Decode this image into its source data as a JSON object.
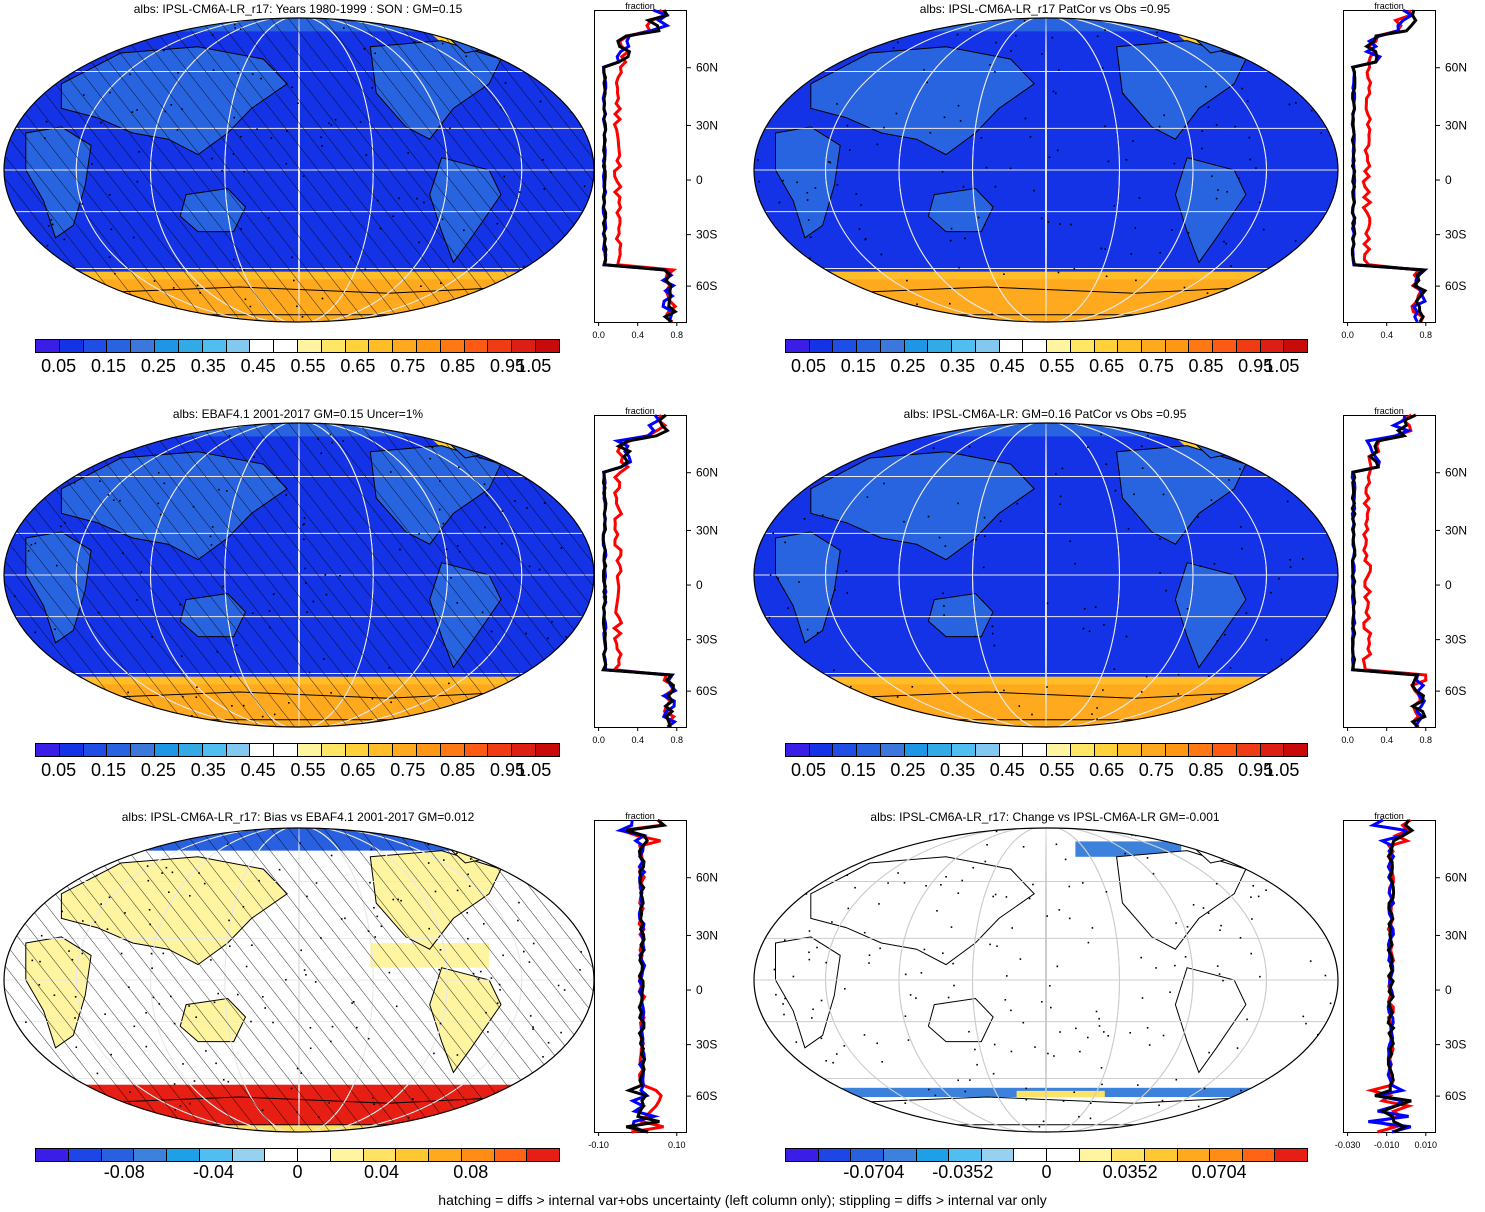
{
  "panels": [
    {
      "title": "albs: IPSL-CM6A-LR_r17: Years 1980-1999 : SON : GM=0.15",
      "kind": "abs",
      "hatch": true,
      "profile": {
        "top_label": "fraction",
        "xticks": [
          "0.0",
          "0.4",
          "0.8"
        ],
        "lat_labels": [
          "60N",
          "30N",
          "0",
          "30S",
          "60S"
        ]
      },
      "colorbar": {
        "labels": [
          "0.05",
          "0.15",
          "0.25",
          "0.35",
          "0.45",
          "0.55",
          "0.65",
          "0.75",
          "0.85",
          "0.95",
          "1.05"
        ]
      }
    },
    {
      "title": "albs: IPSL-CM6A-LR_r17 PatCor vs Obs =0.95",
      "kind": "abs",
      "hatch": false,
      "profile": {
        "top_label": "fraction",
        "xticks": [
          "0.0",
          "0.4",
          "0.8"
        ],
        "lat_labels": [
          "60N",
          "30N",
          "0",
          "30S",
          "60S"
        ]
      },
      "colorbar": {
        "labels": [
          "0.05",
          "0.15",
          "0.25",
          "0.35",
          "0.45",
          "0.55",
          "0.65",
          "0.75",
          "0.85",
          "0.95",
          "1.05"
        ]
      }
    },
    {
      "title": "albs: EBAF4.1 2001-2017 GM=0.15 Uncer=1%",
      "kind": "abs",
      "hatch": true,
      "profile": {
        "top_label": "fraction",
        "xticks": [
          "0.0",
          "0.4",
          "0.8"
        ],
        "lat_labels": [
          "60N",
          "30N",
          "0",
          "30S",
          "60S"
        ]
      },
      "colorbar": {
        "labels": [
          "0.05",
          "0.15",
          "0.25",
          "0.35",
          "0.45",
          "0.55",
          "0.65",
          "0.75",
          "0.85",
          "0.95",
          "1.05"
        ]
      }
    },
    {
      "title": "albs: IPSL-CM6A-LR: GM=0.16 PatCor vs Obs =0.95",
      "kind": "abs",
      "hatch": false,
      "profile": {
        "top_label": "fraction",
        "xticks": [
          "0.0",
          "0.4",
          "0.8"
        ],
        "lat_labels": [
          "60N",
          "30N",
          "0",
          "30S",
          "60S"
        ]
      },
      "colorbar": {
        "labels": [
          "0.05",
          "0.15",
          "0.25",
          "0.35",
          "0.45",
          "0.55",
          "0.65",
          "0.75",
          "0.85",
          "0.95",
          "1.05"
        ]
      }
    },
    {
      "title": "albs: IPSL-CM6A-LR_r17: Bias vs EBAF4.1 2001-2017  GM=0.012",
      "kind": "diff",
      "hatch": true,
      "profile": {
        "top_label": "fraction",
        "xticks": [
          "-0.10",
          "0.10"
        ],
        "lat_labels": [
          "60N",
          "30N",
          "0",
          "30S",
          "60S"
        ]
      },
      "colorbar": {
        "labels": [
          "-0.08",
          "-0.04",
          "0",
          "0.04",
          "0.08"
        ]
      }
    },
    {
      "title": "albs: IPSL-CM6A-LR_r17: Change vs IPSL-CM6A-LR GM=-0.001",
      "kind": "change",
      "hatch": false,
      "profile": {
        "top_label": "fraction",
        "xticks": [
          "-0.030",
          "-0.010",
          "0.010"
        ],
        "lat_labels": [
          "60N",
          "30N",
          "0",
          "30S",
          "60S"
        ]
      },
      "colorbar": {
        "labels": [
          "-0.0704",
          "-0.0352",
          "0",
          "0.0352",
          "0.0704"
        ]
      }
    }
  ],
  "colors": {
    "abs_scale": [
      "#3a1ee8",
      "#1432e6",
      "#1e4ee6",
      "#2864e0",
      "#3c78dc",
      "#1e96e6",
      "#32aae6",
      "#50bef0",
      "#82c8f0",
      "#ffffff",
      "#ffffff",
      "#fff5a0",
      "#ffe664",
      "#ffd23c",
      "#ffbe28",
      "#ffaa1e",
      "#ff9614",
      "#ff7814",
      "#ff5a14",
      "#f03c14",
      "#dc1e14",
      "#c80a0a"
    ],
    "diff_scale": [
      "#3a1ee8",
      "#1e46e6",
      "#2860e0",
      "#3c82dc",
      "#1ea0e6",
      "#50bef0",
      "#96d2f0",
      "#ffffff",
      "#ffffff",
      "#fff5a0",
      "#ffe164",
      "#ffc832",
      "#ffaa1e",
      "#ff8c14",
      "#ff6414",
      "#e61e14"
    ],
    "model_line": "#0000ff",
    "obs_line": "#ff0000",
    "other_line": "#000000"
  },
  "footer": "hatching = diffs > internal var+obs uncertainty (left column only); stippling = diffs > internal var only"
}
